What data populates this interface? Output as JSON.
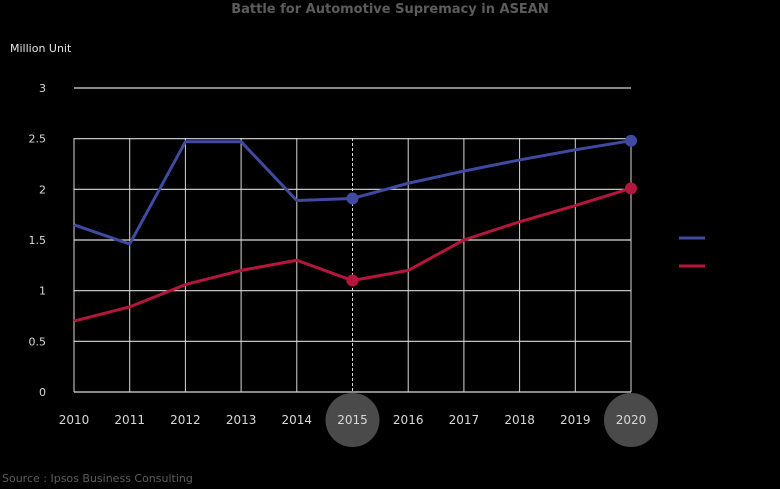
{
  "chart_data": {
    "type": "line",
    "title": "Battle for Automotive Supremacy in ASEAN",
    "ylabel": "Million Unit",
    "xlabel": "",
    "ylim": [
      0,
      3
    ],
    "yticks": [
      0,
      0.5,
      1,
      1.5,
      2,
      2.5,
      3
    ],
    "categories": [
      "2010",
      "2011",
      "2012",
      "2013",
      "2014",
      "2015",
      "2016",
      "2017",
      "2018",
      "2019",
      "2020"
    ],
    "highlighted_categories": [
      "2015",
      "2020"
    ],
    "legend": {
      "placement": "right"
    },
    "series": [
      {
        "name": "",
        "color": "#3f4aa0",
        "values": [
          1.65,
          1.46,
          2.47,
          2.47,
          1.89,
          1.91,
          2.06,
          2.18,
          2.29,
          2.39,
          2.48
        ],
        "markers_at": [
          "2015",
          "2020"
        ]
      },
      {
        "name": "",
        "color": "#b5173c",
        "values": [
          0.7,
          0.84,
          1.06,
          1.2,
          1.3,
          1.1,
          1.2,
          1.5,
          1.68,
          1.84,
          2.01
        ],
        "markers_at": [
          "2015",
          "2020"
        ]
      }
    ],
    "source": "Source : Ipsos Business Consulting"
  },
  "colors": {
    "background": "#000000",
    "grid": "#d9d9d9",
    "highlight": "#4a4a4a"
  }
}
